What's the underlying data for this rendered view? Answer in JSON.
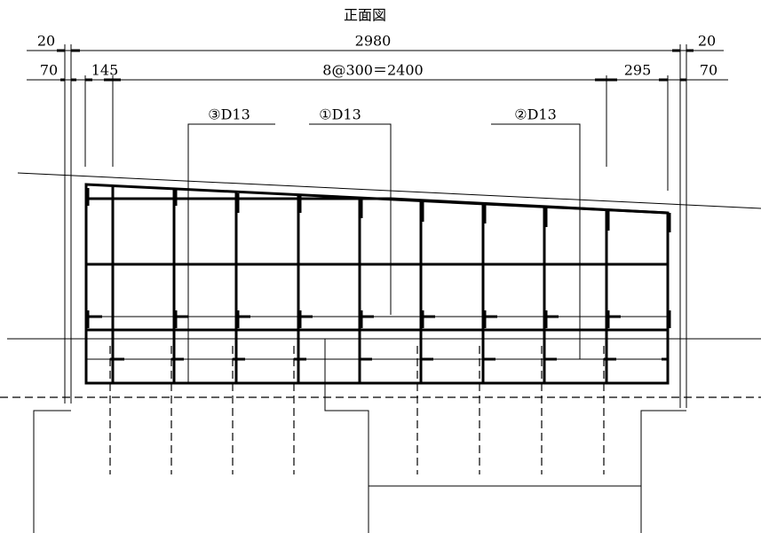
{
  "title": "正面図",
  "dimensions": {
    "top_left": "20",
    "overall": "2980",
    "top_right": "20",
    "second_left": "70",
    "first_spacing": "145",
    "pitch": "8@300＝2400",
    "last_spacing": "295",
    "second_right": "70"
  },
  "labels": {
    "bar_3": "③D13",
    "bar_1": "①D13",
    "bar_2": "②D13"
  }
}
